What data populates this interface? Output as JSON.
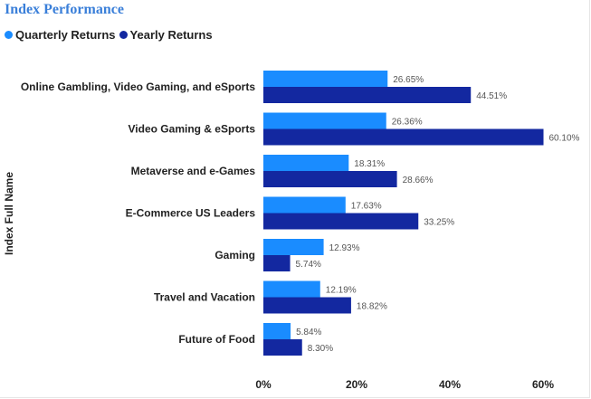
{
  "chart_data": {
    "type": "bar",
    "orientation": "horizontal",
    "title": "Index Performance",
    "ylabel": "Index Full Name",
    "xlabel": "",
    "categories": [
      "Online Gambling, Video Gaming, and eSports",
      "Video Gaming & eSports",
      "Metaverse and e-Games",
      "E-Commerce US Leaders",
      "Gaming",
      "Travel and Vacation",
      "Future of Food"
    ],
    "series": [
      {
        "name": "Quarterly Returns",
        "color": "#1a8cff",
        "values": [
          26.65,
          26.36,
          18.31,
          17.63,
          12.93,
          12.19,
          5.84
        ]
      },
      {
        "name": "Yearly Returns",
        "color": "#1328a0",
        "values": [
          44.51,
          60.1,
          28.66,
          33.25,
          5.74,
          18.82,
          8.3
        ]
      }
    ],
    "value_labels": [
      [
        "26.65%",
        "26.36%",
        "18.31%",
        "17.63%",
        "12.93%",
        "12.19%",
        "5.84%"
      ],
      [
        "44.51%",
        "60.10%",
        "28.66%",
        "33.25%",
        "5.74%",
        "18.82%",
        "8.30%"
      ]
    ],
    "xticks": [
      "0%",
      "20%",
      "40%",
      "60%"
    ],
    "xtick_values": [
      0,
      20,
      40,
      60
    ],
    "xlim": [
      0,
      64
    ],
    "legend_position": "top-left",
    "grid": false
  }
}
